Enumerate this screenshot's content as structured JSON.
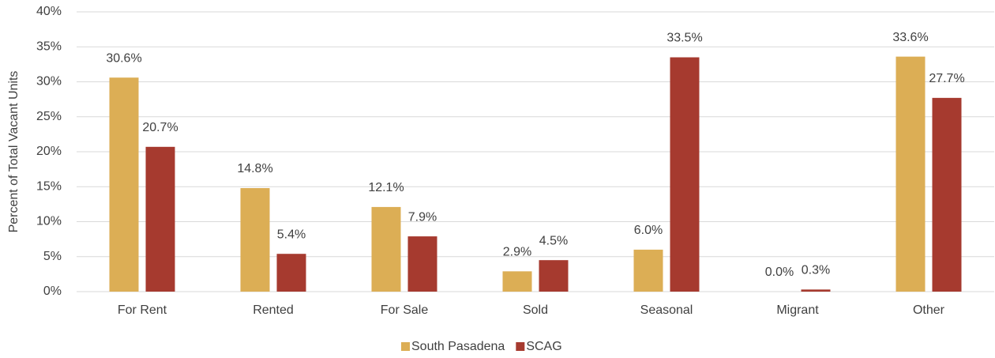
{
  "chart_data": {
    "type": "bar",
    "y_label": "Percent of Total Vacant Units",
    "categories": [
      "For Rent",
      "Rented",
      "For Sale",
      "Sold",
      "Seasonal",
      "Migrant",
      "Other"
    ],
    "series": [
      {
        "name": "South Pasadena",
        "color": "#dcae55",
        "values": [
          30.6,
          14.8,
          12.1,
          2.9,
          6.0,
          0.0,
          33.6
        ],
        "value_labels": [
          "30.6%",
          "14.8%",
          "12.1%",
          "2.9%",
          "6.0%",
          "0.0%",
          "33.6%"
        ]
      },
      {
        "name": "SCAG",
        "color": "#a63a2f",
        "values": [
          20.7,
          5.4,
          7.9,
          4.5,
          33.5,
          0.3,
          27.7
        ],
        "value_labels": [
          "20.7%",
          "5.4%",
          "7.9%",
          "4.5%",
          "33.5%",
          "0.3%",
          "27.7%"
        ]
      }
    ],
    "ylim": [
      0,
      40
    ],
    "yticks": [
      {
        "value": 0,
        "label": "0%"
      },
      {
        "value": 5,
        "label": "5%"
      },
      {
        "value": 10,
        "label": "10%"
      },
      {
        "value": 15,
        "label": "15%"
      },
      {
        "value": 20,
        "label": "20%"
      },
      {
        "value": 25,
        "label": "25%"
      },
      {
        "value": 30,
        "label": "30%"
      },
      {
        "value": 35,
        "label": "35%"
      },
      {
        "value": 40,
        "label": "40%"
      }
    ],
    "grid": true,
    "legend": "bottom"
  }
}
